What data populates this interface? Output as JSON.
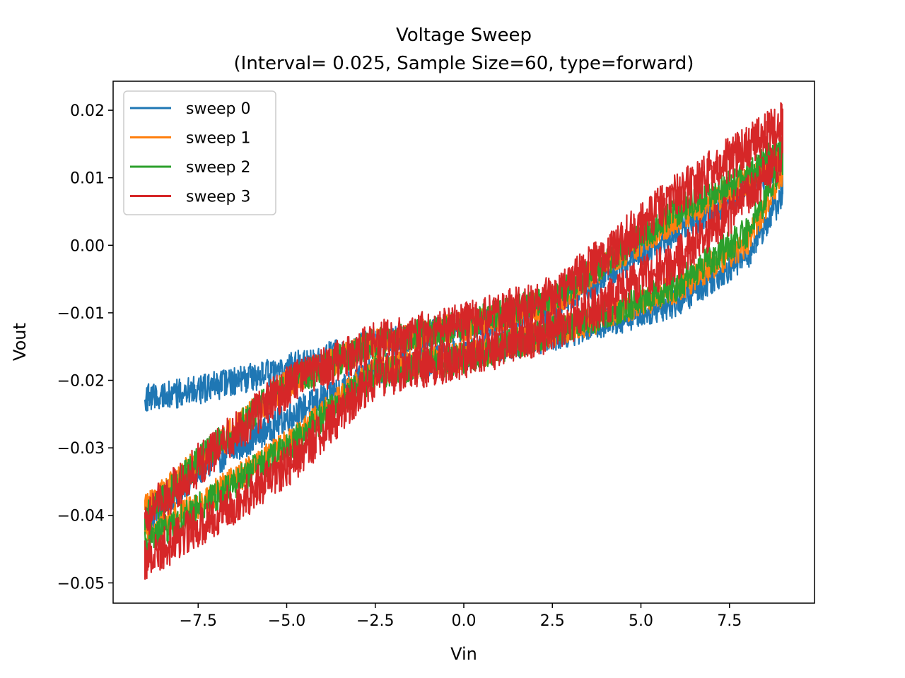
{
  "chart_data": {
    "type": "line",
    "title": "Voltage Sweep",
    "subtitle": "(Interval= 0.025, Sample Size=60, type=forward)",
    "xlabel": "Vin",
    "ylabel": "Vout",
    "xlim": [
      -9.9,
      9.9
    ],
    "ylim": [
      -0.053,
      0.0243
    ],
    "xticks": [
      -7.5,
      -5.0,
      -2.5,
      0.0,
      2.5,
      5.0,
      7.5
    ],
    "xtick_labels": [
      "−7.5",
      "−5.0",
      "−2.5",
      "0.0",
      "2.5",
      "5.0",
      "7.5"
    ],
    "yticks": [
      0.02,
      0.01,
      0.0,
      -0.01,
      -0.02,
      -0.03,
      -0.04,
      -0.05
    ],
    "ytick_labels": [
      "0.02",
      "0.01",
      "0.00",
      "−0.01",
      "−0.02",
      "−0.03",
      "−0.04",
      "−0.05"
    ],
    "grid": false,
    "legend_position": "top-left",
    "x_range": [
      -9.0,
      9.0
    ],
    "x_step": 0.025,
    "series": [
      {
        "name": "sweep 0",
        "color": "#1f77b4",
        "noise": 0.0022,
        "upper_branch": [
          [
            -9.0,
            -0.0225
          ],
          [
            -7.5,
            -0.0215
          ],
          [
            -5.0,
            -0.0182
          ],
          [
            -2.5,
            -0.0145
          ],
          [
            0.0,
            -0.0122
          ],
          [
            2.5,
            -0.0095
          ],
          [
            4.0,
            -0.0045
          ],
          [
            6.0,
            0.002
          ],
          [
            8.0,
            0.0085
          ],
          [
            9.0,
            0.0125
          ]
        ],
        "lower_branch": [
          [
            -9.0,
            -0.041
          ],
          [
            -7.5,
            -0.0335
          ],
          [
            -5.0,
            -0.0255
          ],
          [
            -2.5,
            -0.0185
          ],
          [
            0.0,
            -0.0162
          ],
          [
            2.5,
            -0.0135
          ],
          [
            4.0,
            -0.0115
          ],
          [
            6.0,
            -0.0085
          ],
          [
            8.0,
            -0.0015
          ],
          [
            9.0,
            0.0075
          ]
        ]
      },
      {
        "name": "sweep 1",
        "color": "#ff7f0e",
        "noise": 0.0022,
        "upper_branch": [
          [
            -9.0,
            -0.039
          ],
          [
            -7.5,
            -0.032
          ],
          [
            -5.0,
            -0.0205
          ],
          [
            -2.5,
            -0.0145
          ],
          [
            0.0,
            -0.012
          ],
          [
            2.5,
            -0.0085
          ],
          [
            4.0,
            -0.003
          ],
          [
            6.0,
            0.004
          ],
          [
            8.0,
            0.0095
          ],
          [
            9.0,
            0.014
          ]
        ],
        "lower_branch": [
          [
            -9.0,
            -0.0425
          ],
          [
            -7.5,
            -0.0385
          ],
          [
            -5.0,
            -0.0295
          ],
          [
            -2.5,
            -0.0185
          ],
          [
            0.0,
            -0.0165
          ],
          [
            2.5,
            -0.013
          ],
          [
            4.0,
            -0.0105
          ],
          [
            6.0,
            -0.0065
          ],
          [
            8.0,
            0.0005
          ],
          [
            9.0,
            0.011
          ]
        ]
      },
      {
        "name": "sweep 2",
        "color": "#2ca02c",
        "noise": 0.0023,
        "upper_branch": [
          [
            -9.0,
            -0.0405
          ],
          [
            -7.5,
            -0.032
          ],
          [
            -5.0,
            -0.0205
          ],
          [
            -2.5,
            -0.0145
          ],
          [
            0.0,
            -0.0118
          ],
          [
            2.5,
            -0.008
          ],
          [
            4.0,
            -0.0025
          ],
          [
            6.0,
            0.005
          ],
          [
            8.0,
            0.0105
          ],
          [
            9.0,
            0.0145
          ]
        ],
        "lower_branch": [
          [
            -9.0,
            -0.044
          ],
          [
            -7.5,
            -0.039
          ],
          [
            -5.0,
            -0.03
          ],
          [
            -2.5,
            -0.019
          ],
          [
            0.0,
            -0.0167
          ],
          [
            2.5,
            -0.0128
          ],
          [
            4.0,
            -0.0102
          ],
          [
            6.0,
            -0.006
          ],
          [
            8.0,
            0.002
          ],
          [
            9.0,
            0.012
          ]
        ]
      },
      {
        "name": "sweep 3",
        "color": "#d62728",
        "noise": 0.0033,
        "upper_branch": [
          [
            -9.0,
            -0.0405
          ],
          [
            -7.5,
            -0.0325
          ],
          [
            -5.0,
            -0.021
          ],
          [
            -2.5,
            -0.0145
          ],
          [
            0.0,
            -0.0118
          ],
          [
            2.5,
            -0.0078
          ],
          [
            4.0,
            -0.0015
          ],
          [
            6.0,
            0.0075
          ],
          [
            8.0,
            0.0145
          ],
          [
            9.0,
            0.018
          ]
        ],
        "lower_branch": [
          [
            -9.0,
            -0.0465
          ],
          [
            -7.5,
            -0.0415
          ],
          [
            -5.0,
            -0.033
          ],
          [
            -2.5,
            -0.0195
          ],
          [
            0.0,
            -0.0165
          ],
          [
            2.5,
            -0.0125
          ],
          [
            4.0,
            -0.0085
          ],
          [
            6.0,
            -0.002
          ],
          [
            8.0,
            0.007
          ],
          [
            9.0,
            0.0135
          ]
        ]
      }
    ]
  }
}
